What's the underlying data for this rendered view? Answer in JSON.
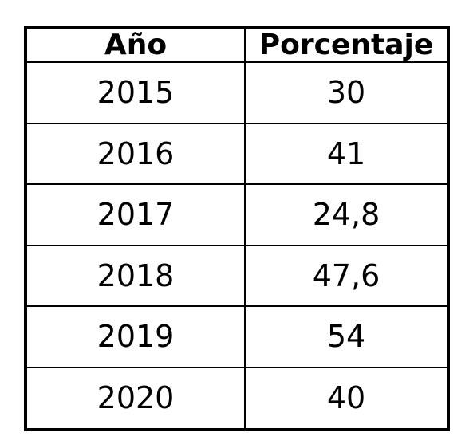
{
  "table": {
    "header": [
      "Año",
      "Porcentaje"
    ],
    "rows": [
      [
        "2015",
        "30"
      ],
      [
        "2016",
        "41"
      ],
      [
        "2017",
        "24,8"
      ],
      [
        "2018",
        "47,6"
      ],
      [
        "2019",
        "54"
      ],
      [
        "2020",
        "40"
      ]
    ]
  }
}
